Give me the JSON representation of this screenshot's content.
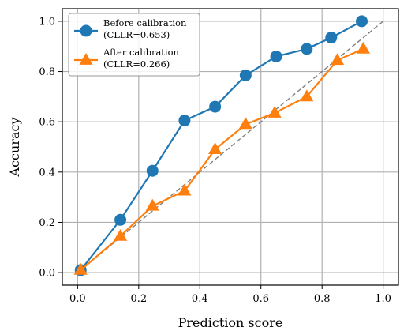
{
  "chart_data": {
    "type": "line",
    "xlabel": "Prediction score",
    "ylabel": "Accuracy",
    "xlim": [
      -0.05,
      1.05
    ],
    "ylim": [
      -0.05,
      1.05
    ],
    "xticks": [
      "0.0",
      "0.2",
      "0.4",
      "0.6",
      "0.8",
      "1.0"
    ],
    "yticks": [
      "0.0",
      "0.2",
      "0.4",
      "0.6",
      "0.8",
      "1.0"
    ],
    "grid": true,
    "legend_position": "top-left",
    "reference_line": {
      "style": "dashed",
      "color": "#808080",
      "from": [
        0,
        0
      ],
      "to": [
        1,
        1
      ]
    },
    "series": [
      {
        "name": "Before calibration",
        "legend_note": "(CLLR=0.653)",
        "color": "#1f77b4",
        "marker": "circle",
        "x": [
          0.01,
          0.14,
          0.245,
          0.35,
          0.45,
          0.55,
          0.65,
          0.75,
          0.83,
          0.93
        ],
        "y": [
          0.01,
          0.21,
          0.405,
          0.605,
          0.66,
          0.785,
          0.86,
          0.89,
          0.935,
          1.0
        ]
      },
      {
        "name": "After calibration",
        "legend_note": "(CLLR=0.266)",
        "color": "#ff7f0e",
        "marker": "triangle",
        "x": [
          0.01,
          0.14,
          0.245,
          0.35,
          0.45,
          0.55,
          0.645,
          0.75,
          0.85,
          0.935
        ],
        "y": [
          0.01,
          0.145,
          0.265,
          0.325,
          0.49,
          0.59,
          0.635,
          0.7,
          0.845,
          0.89
        ]
      }
    ]
  }
}
